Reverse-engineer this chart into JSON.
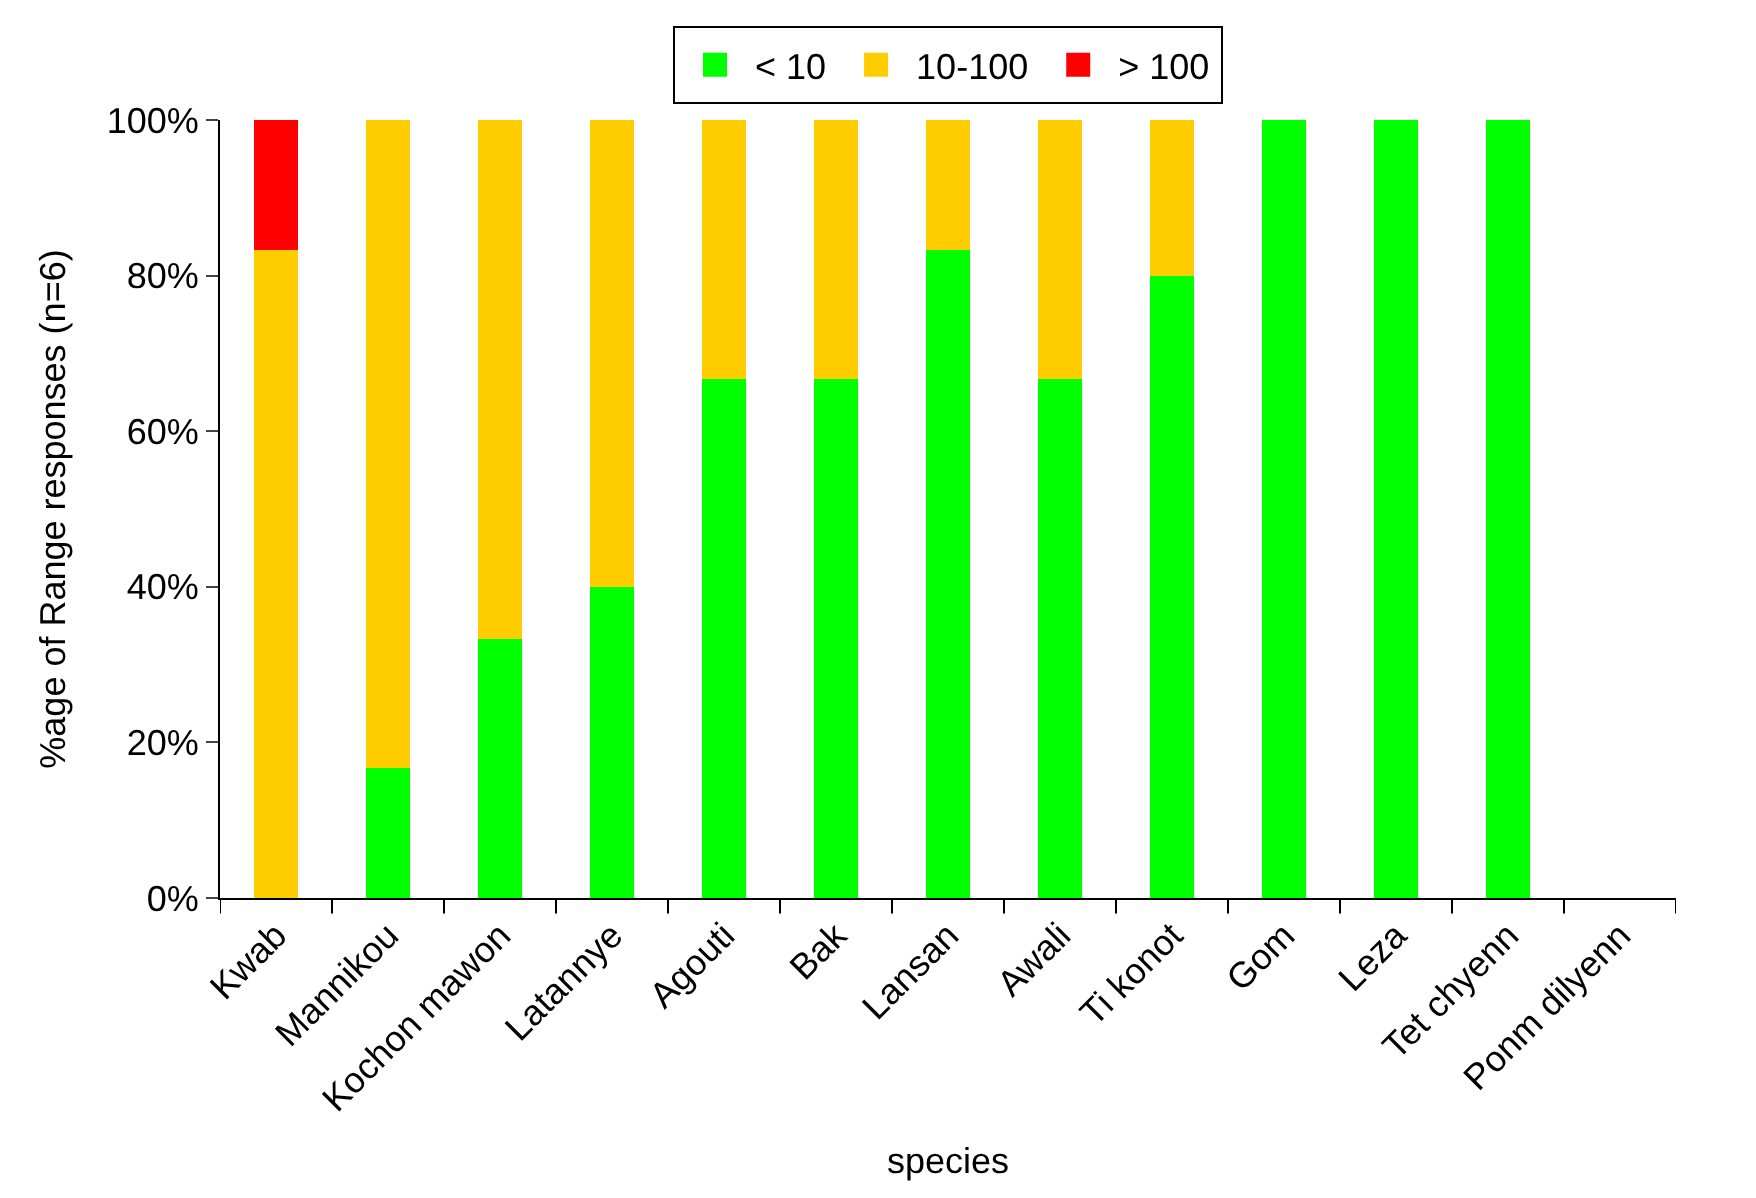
{
  "chart_data": {
    "type": "bar",
    "stacked": true,
    "xlabel": "species",
    "ylabel": "%age of Range responses (n=6)",
    "categories": [
      "Kwab",
      "Mannikou",
      "Kochon mawon",
      "Latannye",
      "Agouti",
      "Bak",
      "Lansan",
      "Awali",
      "Ti konot",
      "Gom",
      "Leza",
      "Tet chyenn",
      "Ponm dilyenn"
    ],
    "series": [
      {
        "name": "< 10",
        "color": "#00ff00",
        "values": [
          0,
          16.7,
          33.3,
          40,
          66.7,
          66.7,
          83.3,
          66.7,
          80,
          100,
          100,
          100,
          0
        ]
      },
      {
        "name": "10-100",
        "color": "#ffcc00",
        "values": [
          83.3,
          83.3,
          66.7,
          60,
          33.3,
          33.3,
          16.7,
          33.3,
          20,
          0,
          0,
          0,
          0
        ]
      },
      {
        "name": "> 100",
        "color": "#ff0000",
        "values": [
          16.7,
          0,
          0,
          0,
          0,
          0,
          0,
          0,
          0,
          0,
          0,
          0,
          0
        ]
      }
    ],
    "ylim": [
      0,
      100
    ],
    "yticks": [
      {
        "value": 0,
        "label": "0%"
      },
      {
        "value": 20,
        "label": "20%"
      },
      {
        "value": 40,
        "label": "40%"
      },
      {
        "value": 60,
        "label": "60%"
      },
      {
        "value": 80,
        "label": "80%"
      },
      {
        "value": 100,
        "label": "100%"
      }
    ],
    "legend": "top"
  }
}
